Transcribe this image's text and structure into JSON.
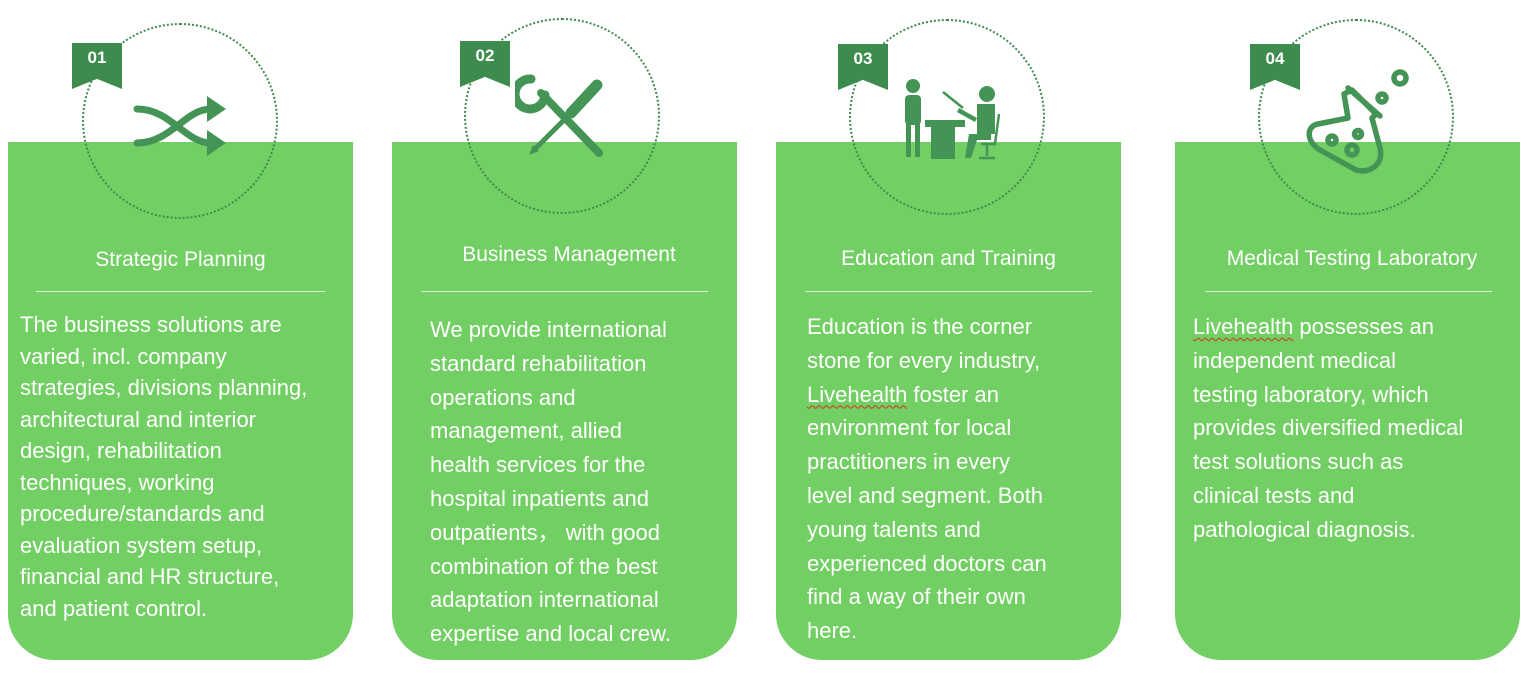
{
  "colors": {
    "card": "#72cf63",
    "badge": "#3d8c4e",
    "icon": "#449456",
    "text": "#ffffff"
  },
  "cards": [
    {
      "number": "01",
      "icon": "shuffle-arrows-icon",
      "title": "Strategic Planning",
      "lines": [
        "The business solutions are",
        "varied, incl. company",
        "strategies, divisions planning,",
        "architectural and interior",
        "design, rehabilitation",
        "techniques, working",
        "procedure/standards and",
        "evaluation system setup,",
        "financial and HR structure,",
        "and patient control."
      ]
    },
    {
      "number": "02",
      "icon": "wrench-screwdriver-icon",
      "title": "Business Management",
      "lines": [
        "We provide international",
        "standard rehabilitation",
        "operations and",
        "management, allied",
        "health services for the",
        "hospital inpatients and",
        "outpatients， with good",
        "combination of the best",
        "adaptation international",
        "expertise and local crew."
      ]
    },
    {
      "number": "03",
      "icon": "teacher-student-icon",
      "title": "Education and Training",
      "lines": [
        "Education is the corner",
        "stone for every industry,",
        "Livehealth foster an",
        "environment for local",
        "practitioners in every",
        "level and segment. Both",
        "young talents and",
        "experienced doctors can",
        "find a way of their own",
        "here."
      ]
    },
    {
      "number": "04",
      "icon": "lab-flask-icon",
      "title": "Medical Testing Laboratory",
      "lines": [
        "Livehealth possesses an",
        "independent medical",
        "testing laboratory, which",
        "provides diversified medical",
        "test solutions such as",
        "clinical tests and",
        "pathological diagnosis."
      ]
    }
  ]
}
